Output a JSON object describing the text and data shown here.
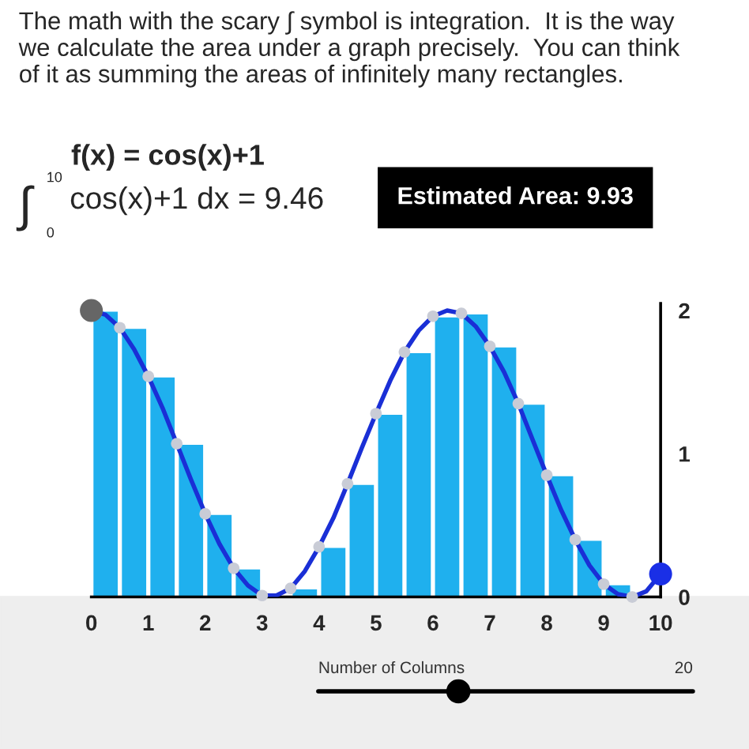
{
  "chart_data": {
    "type": "bar",
    "annotations": [
      "The math with the scary ∫ symbol is integration.  It is the way\nwe calculate the area under a graph precisely.  You can think\nof it as summing the areas of infinitely many rectangles.",
      "f(x) = cos(x)+1",
      "∫",
      "10",
      "0",
      "cos(x)+1 dx = 9.46",
      "Estimated Area: 9.93",
      "Number of Columns",
      "20"
    ],
    "x": [
      0.25,
      0.75,
      1.25,
      1.75,
      2.25,
      2.75,
      3.25,
      3.75,
      4.25,
      4.75,
      5.25,
      5.75,
      6.25,
      6.75,
      7.25,
      7.75,
      8.25,
      8.75,
      9.25
    ],
    "series": [
      {
        "type": "bar",
        "color": "#1fb0ee",
        "values": [
          2.0,
          1.88,
          1.54,
          1.07,
          0.58,
          0.2,
          0.01,
          0.06,
          0.35,
          0.79,
          1.28,
          1.71,
          1.96,
          1.98,
          1.75,
          1.35,
          0.85,
          0.4,
          0.09
        ]
      },
      {
        "type": "line",
        "color": "#1a2fd6",
        "x": [
          0,
          0.25,
          0.5,
          0.75,
          1,
          1.25,
          1.5,
          1.75,
          2,
          2.25,
          2.5,
          2.75,
          3,
          3.25,
          3.5,
          3.75,
          4,
          4.25,
          4.5,
          4.75,
          5,
          5.25,
          5.5,
          5.75,
          6,
          6.25,
          6.5,
          6.75,
          7,
          7.25,
          7.5,
          7.75,
          8,
          8.25,
          8.5,
          8.75,
          9,
          9.25,
          9.5,
          9.75,
          10
        ],
        "values": [
          2.0,
          1.97,
          1.88,
          1.73,
          1.54,
          1.32,
          1.07,
          0.82,
          0.58,
          0.37,
          0.2,
          0.08,
          0.01,
          0.01,
          0.06,
          0.18,
          0.35,
          0.55,
          0.79,
          1.04,
          1.28,
          1.51,
          1.71,
          1.86,
          1.96,
          2.0,
          1.98,
          1.89,
          1.75,
          1.57,
          1.35,
          1.1,
          0.85,
          0.61,
          0.4,
          0.22,
          0.09,
          0.02,
          0.0,
          0.04,
          0.16
        ]
      },
      {
        "type": "scatter",
        "color": "#c9ccd6",
        "x": [
          0.5,
          1,
          1.5,
          2,
          2.5,
          3,
          3.5,
          4,
          4.5,
          5,
          5.5,
          6,
          6.5,
          7,
          7.5,
          8,
          8.5,
          9,
          9.5
        ],
        "values": [
          1.88,
          1.54,
          1.07,
          0.58,
          0.2,
          0.01,
          0.06,
          0.35,
          0.79,
          1.28,
          1.71,
          1.96,
          1.98,
          1.75,
          1.35,
          0.85,
          0.4,
          0.09,
          0.0
        ]
      },
      {
        "type": "scatter",
        "color": "#666666",
        "x": [
          0
        ],
        "values": [
          2.0
        ]
      },
      {
        "type": "scatter",
        "color": "#1a2fe6",
        "x": [
          10
        ],
        "values": [
          0.16
        ]
      }
    ],
    "xlim": [
      0,
      10
    ],
    "xticks": [
      0,
      1,
      2,
      3,
      4,
      5,
      6,
      7,
      8,
      9,
      10
    ],
    "ylim": [
      0,
      2.05
    ],
    "yticks": [
      0,
      1,
      2
    ],
    "grid": false,
    "legend": false
  }
}
